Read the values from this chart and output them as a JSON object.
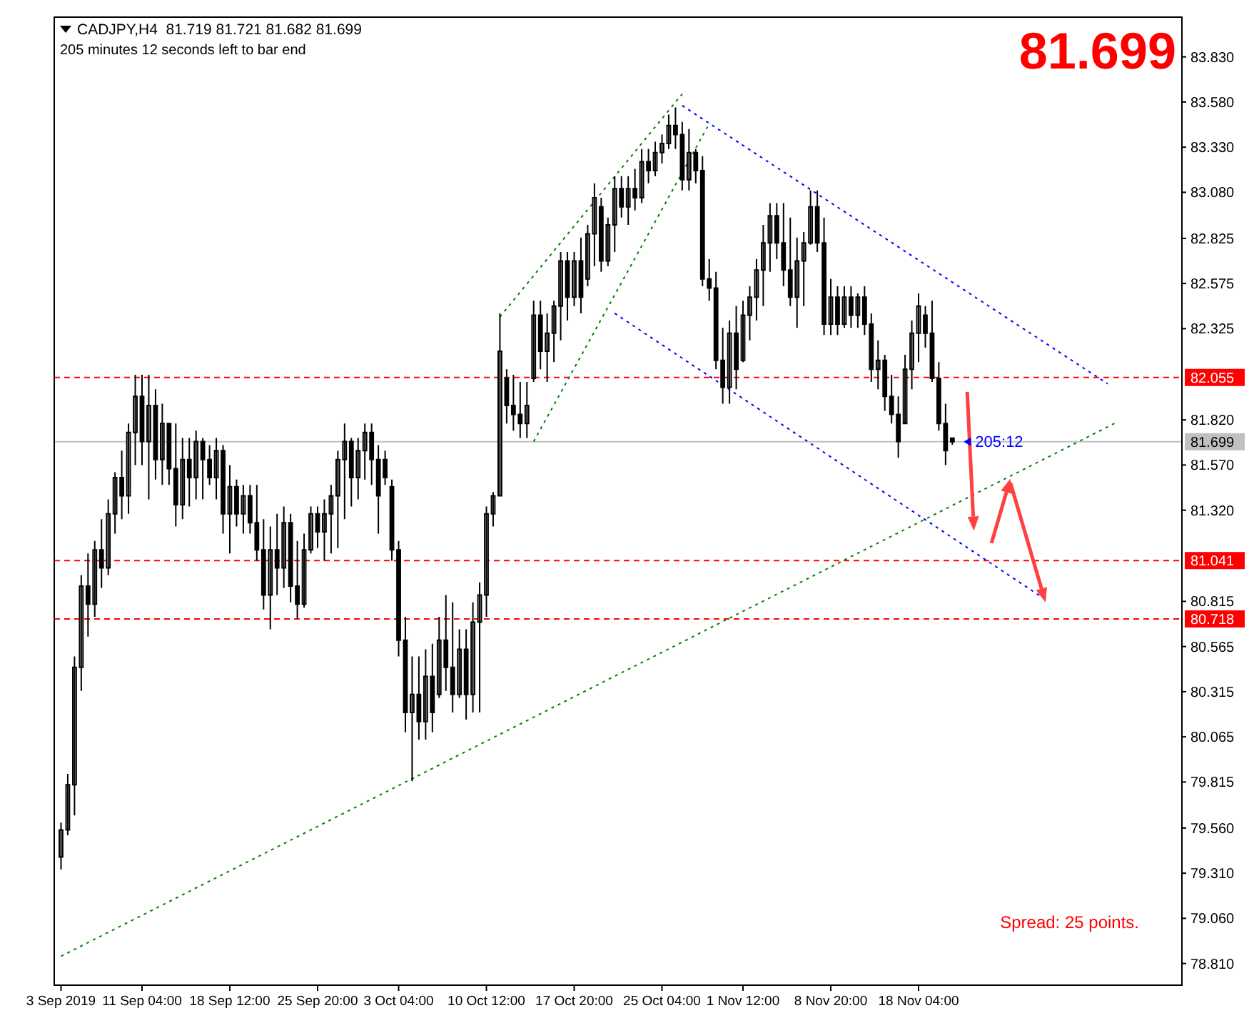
{
  "chart_data": {
    "type": "candlestick",
    "title": "CADJPY,H4  81.719 81.721 81.682 81.699",
    "subtitle": "205 minutes 12 seconds left to bar end",
    "color": "#000000",
    "categories": [
      "3 Sep 2019",
      null,
      null,
      null,
      null,
      null,
      null,
      null,
      null,
      null,
      null,
      null,
      "11 Sep 04:00",
      null,
      null,
      null,
      null,
      null,
      null,
      null,
      null,
      null,
      null,
      null,
      null,
      "18 Sep 12:00",
      null,
      null,
      null,
      null,
      null,
      null,
      null,
      null,
      null,
      null,
      null,
      null,
      "25 Sep 20:00",
      null,
      null,
      null,
      null,
      null,
      null,
      null,
      null,
      null,
      null,
      null,
      "3 Oct 04:00",
      null,
      null,
      null,
      null,
      null,
      null,
      null,
      null,
      null,
      null,
      null,
      null,
      "10 Oct 12:00",
      null,
      null,
      null,
      null,
      null,
      null,
      null,
      null,
      null,
      null,
      null,
      null,
      "17 Oct 20:00",
      null,
      null,
      null,
      null,
      null,
      null,
      null,
      null,
      null,
      null,
      null,
      null,
      "25 Oct 04:00",
      null,
      null,
      null,
      null,
      null,
      null,
      null,
      null,
      null,
      null,
      null,
      "1 Nov 12:00",
      null,
      null,
      null,
      null,
      null,
      null,
      null,
      null,
      null,
      null,
      null,
      null,
      "8 Nov 20:00",
      null,
      null,
      null,
      null,
      null,
      null,
      null,
      null,
      null,
      null,
      null,
      null,
      "18 Nov 04:00",
      null,
      null,
      null,
      null,
      null,
      null,
      null,
      null,
      null,
      null,
      null,
      null,
      null,
      null,
      null,
      null,
      null,
      null,
      null,
      null,
      null,
      null,
      null,
      null,
      null,
      null,
      null,
      null,
      null,
      null,
      null,
      null,
      null,
      null,
      null,
      null,
      null,
      null
    ],
    "ohlc": [
      [
        79.4,
        79.59,
        79.33,
        79.55
      ],
      [
        79.55,
        79.86,
        79.52,
        79.8
      ],
      [
        79.8,
        80.51,
        79.63,
        80.45
      ],
      [
        80.45,
        80.96,
        80.32,
        80.9
      ],
      [
        80.9,
        81.08,
        80.62,
        80.8
      ],
      [
        80.8,
        81.15,
        80.73,
        81.1
      ],
      [
        81.1,
        81.27,
        80.89,
        81.0
      ],
      [
        81.0,
        81.38,
        80.96,
        81.3
      ],
      [
        81.3,
        81.53,
        81.19,
        81.5
      ],
      [
        81.5,
        81.65,
        81.27,
        81.4
      ],
      [
        81.4,
        81.8,
        81.3,
        81.75
      ],
      [
        81.75,
        82.07,
        81.57,
        81.95
      ],
      [
        81.95,
        82.07,
        81.57,
        81.7
      ],
      [
        81.7,
        82.07,
        81.38,
        81.9
      ],
      [
        81.9,
        81.99,
        81.49,
        81.6
      ],
      [
        81.6,
        81.91,
        81.46,
        81.8
      ],
      [
        81.8,
        81.8,
        81.46,
        81.55
      ],
      [
        81.55,
        81.8,
        81.23,
        81.35
      ],
      [
        81.35,
        81.72,
        81.27,
        81.6
      ],
      [
        81.6,
        81.72,
        81.34,
        81.5
      ],
      [
        81.5,
        81.76,
        81.38,
        81.7
      ],
      [
        81.7,
        81.72,
        81.38,
        81.6
      ],
      [
        81.6,
        81.68,
        81.46,
        81.5
      ],
      [
        81.5,
        81.72,
        81.38,
        81.65
      ],
      [
        81.65,
        81.68,
        81.19,
        81.3
      ],
      [
        81.3,
        81.57,
        81.08,
        81.45
      ],
      [
        81.45,
        81.49,
        81.23,
        81.3
      ],
      [
        81.3,
        81.46,
        81.19,
        81.4
      ],
      [
        81.4,
        81.46,
        81.19,
        81.25
      ],
      [
        81.25,
        81.46,
        81.04,
        81.1
      ],
      [
        81.1,
        81.27,
        80.77,
        80.85
      ],
      [
        80.85,
        81.23,
        80.66,
        81.1
      ],
      [
        81.1,
        81.3,
        80.85,
        81.0
      ],
      [
        81.0,
        81.34,
        80.89,
        81.25
      ],
      [
        81.25,
        81.3,
        80.81,
        80.9
      ],
      [
        80.9,
        81.15,
        80.72,
        80.8
      ],
      [
        80.8,
        81.19,
        80.78,
        81.1
      ],
      [
        81.1,
        81.34,
        81.08,
        81.3
      ],
      [
        81.3,
        81.34,
        81.11,
        81.2
      ],
      [
        81.2,
        81.38,
        81.04,
        81.3
      ],
      [
        81.3,
        81.46,
        81.08,
        81.4
      ],
      [
        81.4,
        81.65,
        81.11,
        81.6
      ],
      [
        81.6,
        81.8,
        81.27,
        81.7
      ],
      [
        81.7,
        81.72,
        81.34,
        81.5
      ],
      [
        81.5,
        81.72,
        81.38,
        81.65
      ],
      [
        81.65,
        81.8,
        81.49,
        81.75
      ],
      [
        81.75,
        81.8,
        81.46,
        81.6
      ],
      [
        81.6,
        81.68,
        81.19,
        81.4
      ],
      [
        81.6,
        81.65,
        81.46,
        81.5
      ],
      [
        81.45,
        81.49,
        81.04,
        81.1
      ],
      [
        81.1,
        81.15,
        80.51,
        80.6
      ],
      [
        80.6,
        80.73,
        80.09,
        80.2
      ],
      [
        80.2,
        80.51,
        79.82,
        80.3
      ],
      [
        80.3,
        80.51,
        80.05,
        80.15
      ],
      [
        80.15,
        80.55,
        80.05,
        80.4
      ],
      [
        80.4,
        80.58,
        80.09,
        80.2
      ],
      [
        80.3,
        80.73,
        80.28,
        80.6
      ],
      [
        80.6,
        80.85,
        80.32,
        80.45
      ],
      [
        80.45,
        80.81,
        80.2,
        80.3
      ],
      [
        80.3,
        80.66,
        80.28,
        80.55
      ],
      [
        80.55,
        80.66,
        80.16,
        80.3
      ],
      [
        80.3,
        80.81,
        80.2,
        80.7
      ],
      [
        80.7,
        80.92,
        80.2,
        80.85
      ],
      [
        80.85,
        81.34,
        80.73,
        81.3
      ],
      [
        81.3,
        81.42,
        81.23,
        81.4
      ],
      [
        81.4,
        82.41,
        81.4,
        82.2
      ],
      [
        82.05,
        82.1,
        81.8,
        81.9
      ],
      [
        81.9,
        82.07,
        81.76,
        81.85
      ],
      [
        81.85,
        82.03,
        81.72,
        81.8
      ],
      [
        81.8,
        82.03,
        81.72,
        81.9
      ],
      [
        82.05,
        82.48,
        82.03,
        82.4
      ],
      [
        82.4,
        82.48,
        82.1,
        82.2
      ],
      [
        82.2,
        82.41,
        82.03,
        82.3
      ],
      [
        82.3,
        82.48,
        82.14,
        82.45
      ],
      [
        82.45,
        82.75,
        82.26,
        82.7
      ],
      [
        82.7,
        82.75,
        82.37,
        82.5
      ],
      [
        82.5,
        82.75,
        82.45,
        82.7
      ],
      [
        82.7,
        82.83,
        82.41,
        82.5
      ],
      [
        82.6,
        82.9,
        82.56,
        82.85
      ],
      [
        82.85,
        83.13,
        82.67,
        83.05
      ],
      [
        83.0,
        83.05,
        82.64,
        82.7
      ],
      [
        82.7,
        82.94,
        82.67,
        82.9
      ],
      [
        82.9,
        83.17,
        82.75,
        83.1
      ],
      [
        83.1,
        83.17,
        82.94,
        83.0
      ],
      [
        83.0,
        83.17,
        82.9,
        83.1
      ],
      [
        83.1,
        83.21,
        82.98,
        83.05
      ],
      [
        83.05,
        83.32,
        83.02,
        83.25
      ],
      [
        83.25,
        83.32,
        83.13,
        83.2
      ],
      [
        83.2,
        83.36,
        83.17,
        83.3
      ],
      [
        83.3,
        83.4,
        83.24,
        83.35
      ],
      [
        83.35,
        83.51,
        83.32,
        83.45
      ],
      [
        83.45,
        83.55,
        83.32,
        83.4
      ],
      [
        83.4,
        83.47,
        83.09,
        83.15
      ],
      [
        83.15,
        83.43,
        83.09,
        83.3
      ],
      [
        83.3,
        83.32,
        83.13,
        83.2
      ],
      [
        83.2,
        83.28,
        82.56,
        82.6
      ],
      [
        82.6,
        82.71,
        82.48,
        82.55
      ],
      [
        82.55,
        82.64,
        82.1,
        82.15
      ],
      [
        82.15,
        82.33,
        81.91,
        82.0
      ],
      [
        82.0,
        82.37,
        81.91,
        82.3
      ],
      [
        82.3,
        82.45,
        81.99,
        82.1
      ],
      [
        82.15,
        82.48,
        82.14,
        82.4
      ],
      [
        82.4,
        82.56,
        82.26,
        82.5
      ],
      [
        82.5,
        82.71,
        82.37,
        82.65
      ],
      [
        82.65,
        82.9,
        82.45,
        82.8
      ],
      [
        82.8,
        83.02,
        82.64,
        82.95
      ],
      [
        82.95,
        83.02,
        82.71,
        82.8
      ],
      [
        82.8,
        83.02,
        82.56,
        82.65
      ],
      [
        82.65,
        82.94,
        82.45,
        82.5
      ],
      [
        82.5,
        82.83,
        82.33,
        82.7
      ],
      [
        82.7,
        82.86,
        82.45,
        82.8
      ],
      [
        82.8,
        83.09,
        82.79,
        83.0
      ],
      [
        83.0,
        83.09,
        82.75,
        82.8
      ],
      [
        82.8,
        82.94,
        82.29,
        82.35
      ],
      [
        82.35,
        82.6,
        82.29,
        82.5
      ],
      [
        82.5,
        82.56,
        82.29,
        82.35
      ],
      [
        82.35,
        82.56,
        82.33,
        82.5
      ],
      [
        82.5,
        82.56,
        82.33,
        82.4
      ],
      [
        82.4,
        82.52,
        82.33,
        82.5
      ],
      [
        82.5,
        82.56,
        82.29,
        82.35
      ],
      [
        82.35,
        82.41,
        82.03,
        82.1
      ],
      [
        82.1,
        82.26,
        81.99,
        82.15
      ],
      [
        82.15,
        82.18,
        81.87,
        81.95
      ],
      [
        81.95,
        82.07,
        81.8,
        81.85
      ],
      [
        81.85,
        81.95,
        81.61,
        81.7
      ],
      [
        81.8,
        82.18,
        81.8,
        82.1
      ],
      [
        82.1,
        82.37,
        81.99,
        82.3
      ],
      [
        82.3,
        82.52,
        82.14,
        82.45
      ],
      [
        82.4,
        82.45,
        82.22,
        82.3
      ],
      [
        82.3,
        82.48,
        82.03,
        82.05
      ],
      [
        82.05,
        82.14,
        81.76,
        81.8
      ],
      [
        81.8,
        81.91,
        81.57,
        81.65
      ],
      [
        81.719,
        81.721,
        81.682,
        81.699
      ],
      null,
      null,
      null,
      null,
      null,
      null,
      null,
      null,
      null,
      null,
      null,
      null,
      null,
      null,
      null,
      null,
      null,
      null,
      null,
      null,
      null,
      null,
      null,
      null,
      null,
      null,
      null,
      null,
      null,
      null,
      null,
      null,
      null
    ],
    "series": [
      {
        "type": "line",
        "color": "#008000",
        "line_style": "dotted",
        "values": [
          78.85,
          null,
          null,
          null,
          null,
          null,
          null,
          null,
          null,
          null,
          null,
          null,
          null,
          null,
          null,
          null,
          null,
          null,
          null,
          null,
          null,
          null,
          null,
          null,
          null,
          null,
          null,
          null,
          null,
          null,
          null,
          null,
          null,
          null,
          null,
          null,
          null,
          null,
          null,
          null,
          null,
          null,
          null,
          null,
          null,
          null,
          null,
          null,
          null,
          null,
          null,
          null,
          null,
          null,
          null,
          null,
          null,
          null,
          null,
          null,
          null,
          null,
          null,
          null,
          null,
          null,
          null,
          null,
          null,
          null,
          null,
          null,
          null,
          null,
          null,
          null,
          null,
          null,
          null,
          null,
          null,
          null,
          null,
          null,
          null,
          null,
          null,
          null,
          null,
          null,
          null,
          null,
          null,
          null,
          null,
          null,
          null,
          null,
          null,
          null,
          null,
          null,
          null,
          null,
          null,
          null,
          null,
          null,
          null,
          null,
          null,
          null,
          null,
          null,
          null,
          null,
          null,
          null,
          null,
          null,
          null,
          null,
          null,
          null,
          null,
          null,
          null,
          null,
          null,
          null,
          null,
          null,
          null,
          null,
          null,
          null,
          null,
          null,
          null,
          null,
          null,
          null,
          null,
          null,
          null,
          null,
          null,
          null,
          null,
          null,
          null,
          null,
          null,
          null,
          null,
          null,
          81.8,
          null,
          null,
          null,
          null,
          null,
          null,
          null,
          null,
          null
        ]
      },
      {
        "type": "line",
        "color": "#008000",
        "line_style": "dotted",
        "values": [
          null,
          null,
          null,
          null,
          null,
          null,
          null,
          null,
          null,
          null,
          null,
          null,
          null,
          null,
          null,
          null,
          null,
          null,
          null,
          null,
          null,
          null,
          null,
          null,
          null,
          null,
          null,
          null,
          null,
          null,
          null,
          null,
          null,
          null,
          null,
          null,
          null,
          null,
          null,
          null,
          null,
          null,
          null,
          null,
          null,
          null,
          null,
          null,
          null,
          null,
          null,
          null,
          null,
          null,
          null,
          null,
          null,
          null,
          null,
          null,
          null,
          null,
          null,
          null,
          null,
          82.39,
          null,
          null,
          null,
          null,
          null,
          null,
          null,
          null,
          null,
          null,
          null,
          null,
          null,
          null,
          null,
          null,
          null,
          null,
          null,
          null,
          null,
          null,
          null,
          null,
          null,
          null,
          83.625,
          null,
          null,
          null,
          null,
          null,
          null,
          null,
          null,
          null,
          null,
          null,
          null,
          null,
          null,
          null,
          null,
          null,
          null,
          null,
          null,
          null,
          null,
          null,
          null,
          null,
          null,
          null,
          null,
          null,
          null,
          null,
          null,
          null,
          null,
          null,
          null,
          null,
          null,
          null,
          null,
          null,
          null,
          null,
          null,
          null,
          null,
          null,
          null,
          null,
          null,
          null,
          null,
          null,
          null,
          null,
          null,
          null,
          null,
          null,
          null,
          null,
          null,
          null,
          null,
          null,
          null,
          null,
          null,
          null,
          null,
          null,
          null,
          null
        ]
      },
      {
        "type": "line",
        "color": "#008000",
        "line_style": "dotted",
        "values": [
          null,
          null,
          null,
          null,
          null,
          null,
          null,
          null,
          null,
          null,
          null,
          null,
          null,
          null,
          null,
          null,
          null,
          null,
          null,
          null,
          null,
          null,
          null,
          null,
          null,
          null,
          null,
          null,
          null,
          null,
          null,
          null,
          null,
          null,
          null,
          null,
          null,
          null,
          null,
          null,
          null,
          null,
          null,
          null,
          null,
          null,
          null,
          null,
          null,
          null,
          null,
          null,
          null,
          null,
          null,
          null,
          null,
          null,
          null,
          null,
          null,
          null,
          null,
          null,
          null,
          null,
          null,
          null,
          null,
          null,
          81.7,
          null,
          null,
          null,
          null,
          null,
          null,
          null,
          null,
          null,
          null,
          null,
          null,
          null,
          null,
          null,
          null,
          null,
          null,
          null,
          null,
          null,
          null,
          null,
          null,
          null,
          83.46,
          null,
          null,
          null,
          null,
          null,
          null,
          null,
          null,
          null,
          null,
          null,
          null,
          null,
          null,
          null,
          null,
          null,
          null,
          null,
          null,
          null,
          null,
          null,
          null,
          null,
          null,
          null,
          null,
          null,
          null,
          null,
          null,
          null,
          null,
          null,
          null,
          null,
          null,
          null,
          null,
          null,
          null,
          null,
          null,
          null,
          null,
          null,
          null,
          null,
          null,
          null,
          null,
          null,
          null,
          null,
          null,
          null,
          null,
          null,
          null,
          null,
          null,
          null,
          null,
          null,
          null,
          null,
          null,
          null
        ]
      },
      {
        "type": "line",
        "color": "#0000ff",
        "line_style": "dotted",
        "values": [
          null,
          null,
          null,
          null,
          null,
          null,
          null,
          null,
          null,
          null,
          null,
          null,
          null,
          null,
          null,
          null,
          null,
          null,
          null,
          null,
          null,
          null,
          null,
          null,
          null,
          null,
          null,
          null,
          null,
          null,
          null,
          null,
          null,
          null,
          null,
          null,
          null,
          null,
          null,
          null,
          null,
          null,
          null,
          null,
          null,
          null,
          null,
          null,
          null,
          null,
          null,
          null,
          null,
          null,
          null,
          null,
          null,
          null,
          null,
          null,
          null,
          null,
          null,
          null,
          null,
          null,
          null,
          null,
          null,
          null,
          null,
          null,
          null,
          null,
          null,
          null,
          null,
          null,
          null,
          null,
          null,
          null,
          null,
          null,
          null,
          null,
          null,
          null,
          null,
          null,
          null,
          null,
          83.56,
          null,
          null,
          null,
          null,
          null,
          null,
          null,
          null,
          null,
          null,
          null,
          null,
          null,
          null,
          null,
          null,
          null,
          null,
          null,
          null,
          null,
          null,
          null,
          null,
          null,
          null,
          null,
          null,
          null,
          null,
          null,
          null,
          null,
          null,
          null,
          null,
          null,
          null,
          null,
          null,
          null,
          null,
          null,
          null,
          null,
          null,
          null,
          null,
          null,
          null,
          null,
          null,
          null,
          null,
          null,
          null,
          null,
          null,
          null,
          null,
          null,
          null,
          82.02,
          null,
          null,
          null,
          null,
          null,
          null,
          null,
          null,
          null,
          null
        ]
      },
      {
        "type": "line",
        "color": "#0000ff",
        "line_style": "dotted",
        "values": [
          null,
          null,
          null,
          null,
          null,
          null,
          null,
          null,
          null,
          null,
          null,
          null,
          null,
          null,
          null,
          null,
          null,
          null,
          null,
          null,
          null,
          null,
          null,
          null,
          null,
          null,
          null,
          null,
          null,
          null,
          null,
          null,
          null,
          null,
          null,
          null,
          null,
          null,
          null,
          null,
          null,
          null,
          null,
          null,
          null,
          null,
          null,
          null,
          null,
          null,
          null,
          null,
          null,
          null,
          null,
          null,
          null,
          null,
          null,
          null,
          null,
          null,
          null,
          null,
          null,
          null,
          null,
          null,
          null,
          null,
          null,
          null,
          null,
          null,
          null,
          null,
          null,
          null,
          null,
          null,
          null,
          null,
          82.41,
          null,
          null,
          null,
          null,
          null,
          null,
          null,
          null,
          null,
          null,
          null,
          null,
          null,
          null,
          null,
          null,
          null,
          null,
          null,
          null,
          null,
          null,
          null,
          null,
          null,
          null,
          null,
          null,
          null,
          null,
          null,
          null,
          null,
          null,
          null,
          null,
          null,
          null,
          null,
          null,
          null,
          null,
          null,
          null,
          null,
          null,
          null,
          null,
          null,
          null,
          null,
          null,
          null,
          null,
          null,
          null,
          null,
          null,
          null,
          null,
          null,
          null,
          null,
          80.82,
          null,
          null,
          null,
          null,
          null,
          null,
          null,
          null,
          null,
          null,
          null,
          null,
          null,
          null,
          null,
          null,
          null,
          null,
          null
        ]
      }
    ],
    "ylim": [
      78.69,
      84.05
    ],
    "yticks": [
      {
        "value": 83.83,
        "label": "83.830"
      },
      {
        "value": 83.58,
        "label": "83.580"
      },
      {
        "value": 83.33,
        "label": "83.330"
      },
      {
        "value": 83.08,
        "label": "83.080"
      },
      {
        "value": 82.825,
        "label": "82.825"
      },
      {
        "value": 82.575,
        "label": "82.575"
      },
      {
        "value": 82.325,
        "label": "82.325"
      },
      {
        "value": 81.82,
        "label": "81.820"
      },
      {
        "value": 81.57,
        "label": "81.570"
      },
      {
        "value": 81.32,
        "label": "81.320"
      },
      {
        "value": 80.815,
        "label": "80.815"
      },
      {
        "value": 80.565,
        "label": "80.565"
      },
      {
        "value": 80.315,
        "label": "80.315"
      },
      {
        "value": 80.065,
        "label": "80.065"
      },
      {
        "value": 79.815,
        "label": "79.815"
      },
      {
        "value": 79.56,
        "label": "79.560"
      },
      {
        "value": 79.31,
        "label": "79.310"
      },
      {
        "value": 79.06,
        "label": "79.060"
      },
      {
        "value": 78.81,
        "label": "78.810"
      }
    ],
    "ref_lines": [
      {
        "axis": "y",
        "value": 82.055,
        "label": "82.055",
        "color": "#ff0000",
        "line_style": "dashed"
      },
      {
        "axis": "y",
        "value": 81.041,
        "label": "81.041",
        "color": "#ff0000",
        "line_style": "dashed"
      },
      {
        "axis": "y",
        "value": 80.718,
        "label": "80.718",
        "color": "#ff0000",
        "line_style": "dashed"
      },
      {
        "axis": "y",
        "value": 81.699,
        "label": "81.699",
        "color": "#c0c0c0",
        "line_style": "solid"
      }
    ],
    "annotations": [
      "81.699",
      "205:12",
      "Spread: 25 points."
    ]
  }
}
